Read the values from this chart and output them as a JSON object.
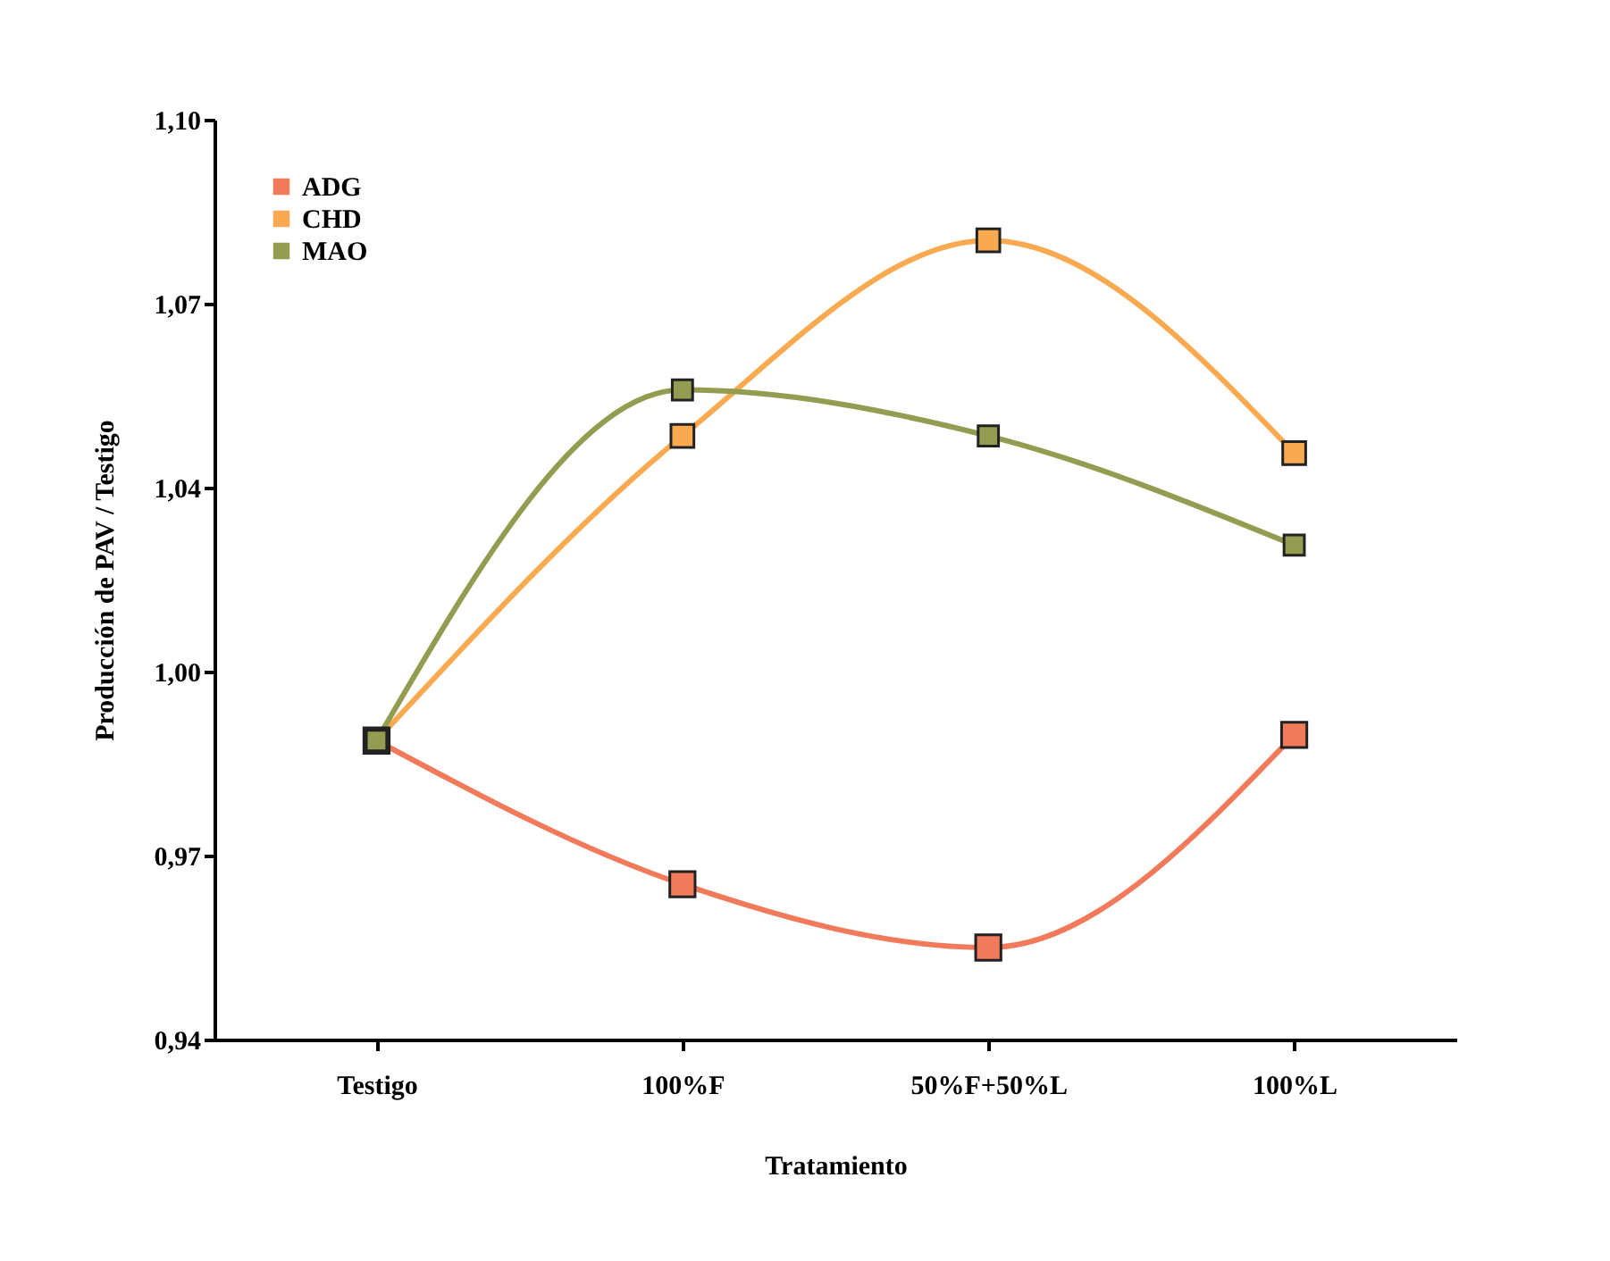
{
  "chart_data": {
    "type": "line",
    "xlabel": "Tratamiento",
    "ylabel": "Producción de PAV / Testigo",
    "categories": [
      "Testigo",
      "100%F",
      "50%F+50%L",
      "100%L"
    ],
    "series": [
      {
        "name": "ADG",
        "color": "#f07a5a",
        "values": [
          0.992,
          0.967,
          0.956,
          0.993
        ]
      },
      {
        "name": "CHD",
        "color": "#f9aa50",
        "values": [
          0.992,
          1.045,
          1.079,
          1.042
        ]
      },
      {
        "name": "MAO",
        "color": "#939c50",
        "values": [
          0.992,
          1.053,
          1.045,
          1.026
        ]
      }
    ],
    "ylim": [
      0.94,
      1.1
    ],
    "yticks": [
      {
        "value": 0.94,
        "label": "0,94"
      },
      {
        "value": 0.972,
        "label": "0,97"
      },
      {
        "value": 1.004,
        "label": "1,00"
      },
      {
        "value": 1.036,
        "label": "1,04"
      },
      {
        "value": 1.068,
        "label": "1,07"
      },
      {
        "value": 1.1,
        "label": "1,10"
      }
    ],
    "marker": "square",
    "legend": "top left",
    "grid": false
  }
}
